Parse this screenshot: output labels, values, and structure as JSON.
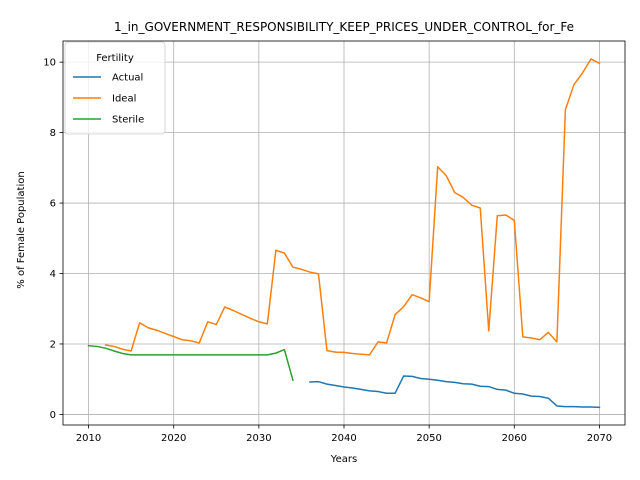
{
  "chart_data": {
    "type": "line",
    "title": "1_in_GOVERNMENT_RESPONSIBILITY_KEEP_PRICES_UNDER_CONTROL_for_Fe",
    "xlabel": "Years",
    "ylabel": "% of Female Population",
    "xlim": [
      2007,
      2073
    ],
    "ylim": [
      -0.3,
      10.6
    ],
    "xticks": [
      2010,
      2020,
      2030,
      2040,
      2050,
      2060,
      2070
    ],
    "yticks": [
      0,
      2,
      4,
      6,
      8,
      10
    ],
    "grid": true,
    "legend": {
      "title": "Fertility",
      "placement": "top-left"
    },
    "series": [
      {
        "name": "Actual",
        "color": "#1f77b4",
        "x": [
          2036,
          2037,
          2038,
          2039,
          2040,
          2041,
          2042,
          2043,
          2044,
          2045,
          2046,
          2047,
          2048,
          2049,
          2050,
          2051,
          2052,
          2053,
          2054,
          2055,
          2056,
          2057,
          2058,
          2059,
          2060,
          2061,
          2062,
          2063,
          2064,
          2065,
          2066,
          2067,
          2068,
          2069,
          2070
        ],
        "y": [
          0.92,
          0.93,
          0.86,
          0.82,
          0.78,
          0.75,
          0.71,
          0.67,
          0.65,
          0.6,
          0.6,
          1.09,
          1.08,
          1.02,
          1.0,
          0.97,
          0.93,
          0.91,
          0.87,
          0.86,
          0.8,
          0.79,
          0.71,
          0.69,
          0.6,
          0.58,
          0.52,
          0.51,
          0.46,
          0.24,
          0.22,
          0.22,
          0.21,
          0.21,
          0.2
        ]
      },
      {
        "name": "Ideal",
        "color": "#ff7f0e",
        "x": [
          2012,
          2013,
          2014,
          2015,
          2016,
          2017,
          2018,
          2019,
          2020,
          2021,
          2022,
          2023,
          2024,
          2025,
          2026,
          2027,
          2028,
          2029,
          2030,
          2031,
          2032,
          2033,
          2034,
          2035,
          2036,
          2037,
          2038,
          2039,
          2040,
          2041,
          2042,
          2043,
          2044,
          2045,
          2046,
          2047,
          2048,
          2049,
          2050,
          2051,
          2052,
          2053,
          2054,
          2055,
          2056,
          2057,
          2058,
          2059,
          2060,
          2061,
          2062,
          2063,
          2064,
          2065,
          2066,
          2067,
          2068,
          2069,
          2070
        ],
        "y": [
          1.97,
          1.93,
          1.85,
          1.8,
          2.6,
          2.46,
          2.39,
          2.3,
          2.21,
          2.12,
          2.09,
          2.03,
          2.63,
          2.55,
          3.05,
          2.95,
          2.84,
          2.73,
          2.63,
          2.57,
          4.66,
          4.58,
          4.18,
          4.12,
          4.04,
          3.99,
          1.81,
          1.77,
          1.76,
          1.73,
          1.71,
          1.69,
          2.06,
          2.03,
          2.83,
          3.06,
          3.4,
          3.31,
          3.2,
          7.03,
          6.78,
          6.3,
          6.16,
          5.94,
          5.86,
          2.37,
          5.64,
          5.66,
          5.51,
          2.2,
          2.17,
          2.12,
          2.33,
          2.06,
          8.65,
          9.36,
          9.69,
          10.09,
          9.97
        ]
      },
      {
        "name": "Sterile",
        "color": "#2ca02c",
        "x": [
          2010,
          2011,
          2012,
          2013,
          2014,
          2015,
          2016,
          2017,
          2018,
          2019,
          2020,
          2021,
          2022,
          2023,
          2024,
          2025,
          2026,
          2027,
          2028,
          2029,
          2030,
          2031,
          2032,
          2033,
          2034
        ],
        "y": [
          1.95,
          1.93,
          1.88,
          1.8,
          1.73,
          1.69,
          1.69,
          1.69,
          1.69,
          1.69,
          1.69,
          1.69,
          1.69,
          1.69,
          1.69,
          1.69,
          1.69,
          1.69,
          1.69,
          1.69,
          1.69,
          1.69,
          1.74,
          1.84,
          0.97
        ]
      }
    ]
  }
}
